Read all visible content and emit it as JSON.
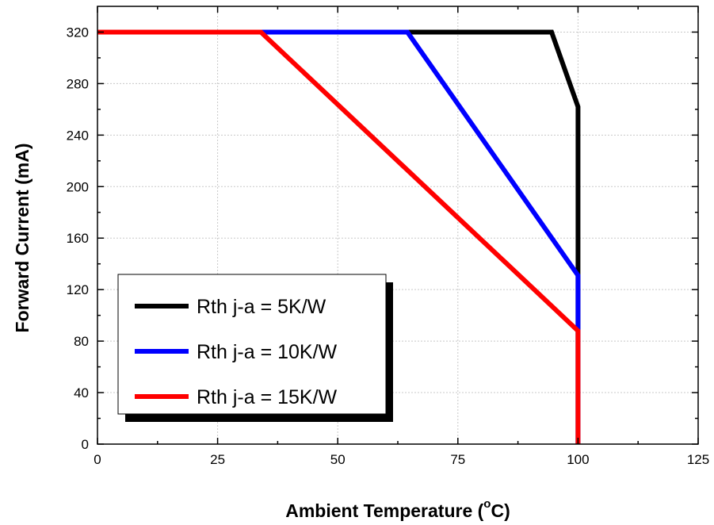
{
  "chart_data": {
    "type": "line",
    "title": "",
    "xlabel_main": "Ambient Temperature (",
    "xlabel_degree": "o",
    "xlabel_unit": "C)",
    "ylabel": "Forward Current (mA)",
    "xlim": [
      0,
      125
    ],
    "ylim": [
      0,
      340
    ],
    "x_ticks": [
      0,
      25,
      50,
      75,
      100,
      125
    ],
    "y_ticks": [
      0,
      40,
      80,
      120,
      160,
      200,
      240,
      280,
      320
    ],
    "grid": true,
    "legend_position": "bottom-left",
    "series": [
      {
        "name": "Rth j-a = 5K/W",
        "color": "#000000",
        "x": [
          0,
          94.5,
          100,
          100
        ],
        "y": [
          320,
          320,
          262,
          0
        ]
      },
      {
        "name": "Rth j-a = 10K/W",
        "color": "#0000ff",
        "x": [
          0,
          64.5,
          100,
          100
        ],
        "y": [
          320,
          320,
          131,
          0
        ]
      },
      {
        "name": "Rth j-a = 15K/W",
        "color": "#ff0000",
        "x": [
          0,
          34,
          100,
          100
        ],
        "y": [
          320,
          320,
          88,
          0
        ]
      }
    ]
  }
}
